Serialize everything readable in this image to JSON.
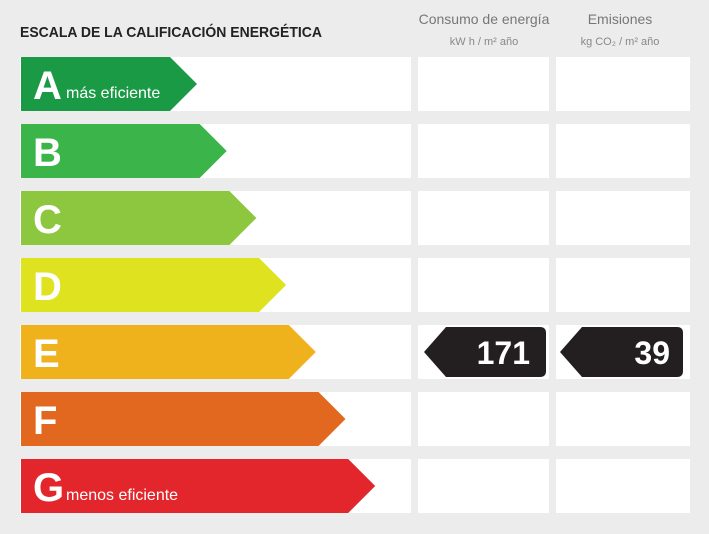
{
  "header": {
    "title": "ESCALA DE LA CALIFICACIÓN ENERGÉTICA"
  },
  "columns": {
    "consumo": {
      "title": "Consumo de energía",
      "unit": "kW h / m² año"
    },
    "emisiones": {
      "title": "Emisiones",
      "unit": "kg CO₂ / m² año"
    }
  },
  "rows": [
    {
      "letter": "A",
      "label": "más eficiente",
      "color": "#1b9a46"
    },
    {
      "letter": "B",
      "color": "#3bb54a"
    },
    {
      "letter": "C",
      "color": "#8dc63f"
    },
    {
      "letter": "D",
      "color": "#dfe21e"
    },
    {
      "letter": "E",
      "color": "#efb21d",
      "consumo": 171,
      "emisiones": 39
    },
    {
      "letter": "F",
      "color": "#e2681f"
    },
    {
      "letter": "G",
      "label": "menos eficiente",
      "color": "#e3262b"
    }
  ]
}
